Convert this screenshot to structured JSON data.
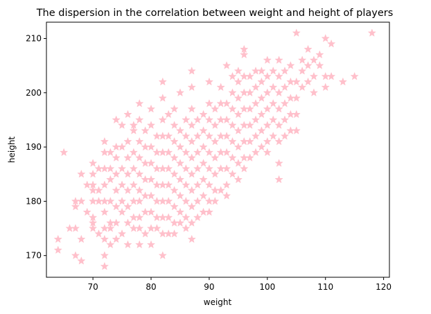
{
  "chart_data": {
    "type": "scatter",
    "title": "The dispersion in the correlation between weight and height of players",
    "xlabel": "weight",
    "ylabel": "height",
    "xlim": [
      62,
      121
    ],
    "ylim": [
      166,
      213
    ],
    "xticks": [
      70,
      80,
      90,
      100,
      110,
      120
    ],
    "yticks": [
      170,
      180,
      190,
      200,
      210
    ],
    "grid": false,
    "marker": "star",
    "marker_color": "#ffc0cb",
    "series": [
      {
        "points": [
          [
            64,
            173
          ],
          [
            64,
            171
          ],
          [
            65,
            189
          ],
          [
            66,
            175
          ],
          [
            67,
            175
          ],
          [
            67,
            170
          ],
          [
            68,
            169
          ],
          [
            68,
            173
          ],
          [
            68,
            180
          ],
          [
            68,
            185
          ],
          [
            67,
            179
          ],
          [
            67,
            180
          ],
          [
            69,
            183
          ],
          [
            69,
            178
          ],
          [
            70,
            183
          ],
          [
            70,
            187
          ],
          [
            70,
            176
          ],
          [
            70,
            180
          ],
          [
            70,
            182
          ],
          [
            70,
            185
          ],
          [
            70,
            175
          ],
          [
            70,
            177
          ],
          [
            71,
            174
          ],
          [
            71,
            182
          ],
          [
            71,
            186
          ],
          [
            71,
            180
          ],
          [
            72,
            168
          ],
          [
            72,
            170
          ],
          [
            72,
            173
          ],
          [
            72,
            178
          ],
          [
            72,
            180
          ],
          [
            72,
            183
          ],
          [
            72,
            186
          ],
          [
            72,
            189
          ],
          [
            72,
            191
          ],
          [
            72,
            175
          ],
          [
            73,
            172
          ],
          [
            73,
            176
          ],
          [
            73,
            180
          ],
          [
            73,
            184
          ],
          [
            73,
            186
          ],
          [
            73,
            189
          ],
          [
            73,
            175
          ],
          [
            74,
            173
          ],
          [
            74,
            176
          ],
          [
            74,
            179
          ],
          [
            74,
            182
          ],
          [
            74,
            185
          ],
          [
            74,
            188
          ],
          [
            74,
            190
          ],
          [
            74,
            195
          ],
          [
            75,
            174
          ],
          [
            75,
            178
          ],
          [
            75,
            180
          ],
          [
            75,
            183
          ],
          [
            75,
            186
          ],
          [
            75,
            190
          ],
          [
            75,
            194
          ],
          [
            76,
            172
          ],
          [
            76,
            176
          ],
          [
            76,
            179
          ],
          [
            76,
            182
          ],
          [
            76,
            185
          ],
          [
            76,
            188
          ],
          [
            76,
            191
          ],
          [
            76,
            196
          ],
          [
            77,
            175
          ],
          [
            77,
            177
          ],
          [
            77,
            180
          ],
          [
            77,
            183
          ],
          [
            77,
            186
          ],
          [
            77,
            189
          ],
          [
            77,
            193
          ],
          [
            77,
            194
          ],
          [
            78,
            175
          ],
          [
            78,
            177
          ],
          [
            78,
            180
          ],
          [
            78,
            182
          ],
          [
            78,
            185
          ],
          [
            78,
            188
          ],
          [
            78,
            191
          ],
          [
            78,
            195
          ],
          [
            78,
            198
          ],
          [
            78,
            172
          ],
          [
            79,
            174
          ],
          [
            79,
            178
          ],
          [
            79,
            181
          ],
          [
            79,
            184
          ],
          [
            79,
            187
          ],
          [
            79,
            190
          ],
          [
            79,
            193
          ],
          [
            80,
            172
          ],
          [
            80,
            175
          ],
          [
            80,
            178
          ],
          [
            80,
            181
          ],
          [
            80,
            184
          ],
          [
            80,
            187
          ],
          [
            80,
            190
          ],
          [
            80,
            194
          ],
          [
            80,
            197
          ],
          [
            81,
            175
          ],
          [
            81,
            177
          ],
          [
            81,
            180
          ],
          [
            81,
            183
          ],
          [
            81,
            186
          ],
          [
            81,
            189
          ],
          [
            81,
            192
          ],
          [
            82,
            170
          ],
          [
            82,
            174
          ],
          [
            82,
            177
          ],
          [
            82,
            180
          ],
          [
            82,
            183
          ],
          [
            82,
            186
          ],
          [
            82,
            189
          ],
          [
            82,
            192
          ],
          [
            82,
            195
          ],
          [
            82,
            199
          ],
          [
            82,
            202
          ],
          [
            83,
            174
          ],
          [
            83,
            177
          ],
          [
            83,
            180
          ],
          [
            83,
            183
          ],
          [
            83,
            186
          ],
          [
            83,
            189
          ],
          [
            83,
            192
          ],
          [
            83,
            196
          ],
          [
            84,
            174
          ],
          [
            84,
            176
          ],
          [
            84,
            179
          ],
          [
            84,
            182
          ],
          [
            84,
            185
          ],
          [
            84,
            188
          ],
          [
            84,
            191
          ],
          [
            84,
            194
          ],
          [
            84,
            197
          ],
          [
            85,
            176
          ],
          [
            85,
            178
          ],
          [
            85,
            181
          ],
          [
            85,
            184
          ],
          [
            85,
            187
          ],
          [
            85,
            190
          ],
          [
            85,
            193
          ],
          [
            85,
            200
          ],
          [
            86,
            175
          ],
          [
            86,
            177
          ],
          [
            86,
            180
          ],
          [
            86,
            183
          ],
          [
            86,
            186
          ],
          [
            86,
            189
          ],
          [
            86,
            192
          ],
          [
            86,
            195
          ],
          [
            87,
            173
          ],
          [
            87,
            176
          ],
          [
            87,
            179
          ],
          [
            87,
            182
          ],
          [
            87,
            185
          ],
          [
            87,
            188
          ],
          [
            87,
            191
          ],
          [
            87,
            194
          ],
          [
            87,
            197
          ],
          [
            87,
            201
          ],
          [
            87,
            204
          ],
          [
            88,
            177
          ],
          [
            88,
            180
          ],
          [
            88,
            183
          ],
          [
            88,
            186
          ],
          [
            88,
            189
          ],
          [
            88,
            192
          ],
          [
            88,
            195
          ],
          [
            89,
            178
          ],
          [
            89,
            181
          ],
          [
            89,
            184
          ],
          [
            89,
            187
          ],
          [
            89,
            190
          ],
          [
            89,
            193
          ],
          [
            89,
            196
          ],
          [
            90,
            178
          ],
          [
            90,
            180
          ],
          [
            90,
            183
          ],
          [
            90,
            186
          ],
          [
            90,
            189
          ],
          [
            90,
            192
          ],
          [
            90,
            195
          ],
          [
            90,
            198
          ],
          [
            90,
            202
          ],
          [
            91,
            180
          ],
          [
            91,
            182
          ],
          [
            91,
            185
          ],
          [
            91,
            188
          ],
          [
            91,
            191
          ],
          [
            91,
            194
          ],
          [
            91,
            197
          ],
          [
            92,
            182
          ],
          [
            92,
            186
          ],
          [
            92,
            189
          ],
          [
            92,
            192
          ],
          [
            92,
            195
          ],
          [
            92,
            198
          ],
          [
            92,
            201
          ],
          [
            93,
            181
          ],
          [
            93,
            183
          ],
          [
            93,
            186
          ],
          [
            93,
            189
          ],
          [
            93,
            192
          ],
          [
            93,
            195
          ],
          [
            93,
            198
          ],
          [
            93,
            205
          ],
          [
            94,
            185
          ],
          [
            94,
            188
          ],
          [
            94,
            191
          ],
          [
            94,
            194
          ],
          [
            94,
            197
          ],
          [
            94,
            200
          ],
          [
            94,
            203
          ],
          [
            95,
            184
          ],
          [
            95,
            187
          ],
          [
            95,
            190
          ],
          [
            95,
            193
          ],
          [
            95,
            196
          ],
          [
            95,
            199
          ],
          [
            95,
            202
          ],
          [
            95,
            204
          ],
          [
            96,
            186
          ],
          [
            96,
            188
          ],
          [
            96,
            191
          ],
          [
            96,
            194
          ],
          [
            96,
            197
          ],
          [
            96,
            200
          ],
          [
            96,
            203
          ],
          [
            96,
            207
          ],
          [
            96,
            208
          ],
          [
            97,
            188
          ],
          [
            97,
            191
          ],
          [
            97,
            194
          ],
          [
            97,
            197
          ],
          [
            97,
            200
          ],
          [
            97,
            203
          ],
          [
            98,
            189
          ],
          [
            98,
            192
          ],
          [
            98,
            195
          ],
          [
            98,
            198
          ],
          [
            98,
            201
          ],
          [
            98,
            204
          ],
          [
            99,
            190
          ],
          [
            99,
            193
          ],
          [
            99,
            196
          ],
          [
            99,
            199
          ],
          [
            99,
            202
          ],
          [
            99,
            204
          ],
          [
            100,
            189
          ],
          [
            100,
            191
          ],
          [
            100,
            194
          ],
          [
            100,
            197
          ],
          [
            100,
            200
          ],
          [
            100,
            203
          ],
          [
            100,
            206
          ],
          [
            101,
            192
          ],
          [
            101,
            195
          ],
          [
            101,
            198
          ],
          [
            101,
            201
          ],
          [
            101,
            204
          ],
          [
            102,
            184
          ],
          [
            102,
            187
          ],
          [
            102,
            191
          ],
          [
            102,
            194
          ],
          [
            102,
            197
          ],
          [
            102,
            200
          ],
          [
            102,
            203
          ],
          [
            102,
            206
          ],
          [
            103,
            192
          ],
          [
            103,
            195
          ],
          [
            103,
            198
          ],
          [
            103,
            201
          ],
          [
            103,
            204
          ],
          [
            104,
            193
          ],
          [
            104,
            196
          ],
          [
            104,
            199
          ],
          [
            104,
            202
          ],
          [
            104,
            205
          ],
          [
            105,
            193
          ],
          [
            105,
            196
          ],
          [
            105,
            199
          ],
          [
            105,
            202
          ],
          [
            105,
            211
          ],
          [
            106,
            201
          ],
          [
            106,
            204
          ],
          [
            106,
            206
          ],
          [
            107,
            202
          ],
          [
            107,
            205
          ],
          [
            107,
            208
          ],
          [
            108,
            200
          ],
          [
            108,
            203
          ],
          [
            108,
            206
          ],
          [
            109,
            207
          ],
          [
            109,
            205
          ],
          [
            110,
            201
          ],
          [
            110,
            203
          ],
          [
            110,
            210
          ],
          [
            111,
            203
          ],
          [
            111,
            209
          ],
          [
            113,
            202
          ],
          [
            115,
            203
          ],
          [
            118,
            211
          ]
        ]
      }
    ]
  }
}
